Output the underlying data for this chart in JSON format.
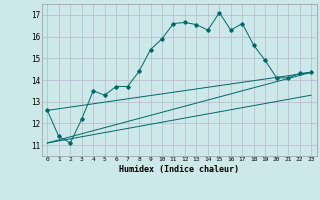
{
  "title": "",
  "xlabel": "Humidex (Indice chaleur)",
  "bg_color": "#cce8e8",
  "grid_color_major": "#b8b8cc",
  "grid_color_minor": "#dcdce8",
  "line_color": "#006868",
  "xlim": [
    -0.5,
    23.5
  ],
  "ylim": [
    10.5,
    17.5
  ],
  "yticks": [
    11,
    12,
    13,
    14,
    15,
    16,
    17
  ],
  "xticks": [
    0,
    1,
    2,
    3,
    4,
    5,
    6,
    7,
    8,
    9,
    10,
    11,
    12,
    13,
    14,
    15,
    16,
    17,
    18,
    19,
    20,
    21,
    22,
    23
  ],
  "series1": [
    12.6,
    11.4,
    11.1,
    12.2,
    13.5,
    13.3,
    13.7,
    13.7,
    14.4,
    15.4,
    15.9,
    16.6,
    16.65,
    16.55,
    16.3,
    17.1,
    16.3,
    16.6,
    15.6,
    14.9,
    14.1,
    14.1,
    14.3,
    14.35
  ],
  "series2_x": [
    0,
    23
  ],
  "series2_y": [
    11.1,
    14.35
  ],
  "series3_x": [
    0,
    23
  ],
  "series3_y": [
    11.1,
    13.3
  ],
  "series4_x": [
    0,
    23
  ],
  "series4_y": [
    12.6,
    14.35
  ]
}
